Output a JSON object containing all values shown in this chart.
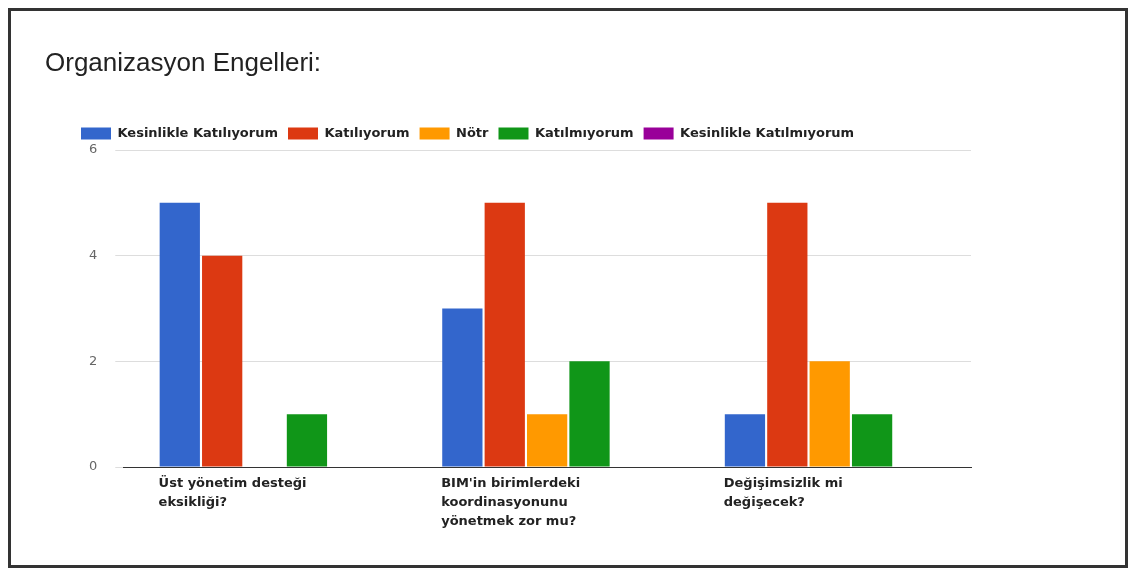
{
  "chart_data": {
    "type": "bar",
    "title": "Organizasyon Engelleri:",
    "categories": [
      "Üst yönetim desteği eksikliği?",
      "BIM'in birimlerdeki koordinasyonunu yönetmek zor mu?",
      "Değişimsizlik mi değişecek?"
    ],
    "series": [
      {
        "name": "Kesinlikle Katılıyorum",
        "color": "#3366cc",
        "values": [
          5,
          3,
          1
        ]
      },
      {
        "name": "Katılıyorum",
        "color": "#dc3912",
        "values": [
          4,
          5,
          5
        ]
      },
      {
        "name": "Nötr",
        "color": "#ff9900",
        "values": [
          0,
          1,
          2
        ]
      },
      {
        "name": "Katılmıyorum",
        "color": "#109618",
        "values": [
          1,
          2,
          1
        ]
      },
      {
        "name": "Kesinlikle Katılmıyorum",
        "color": "#990099",
        "values": [
          0,
          0,
          0
        ]
      }
    ],
    "ylim": [
      0,
      6
    ],
    "yticks": [
      0,
      2,
      4,
      6
    ],
    "grid": "y",
    "legend": "top"
  }
}
